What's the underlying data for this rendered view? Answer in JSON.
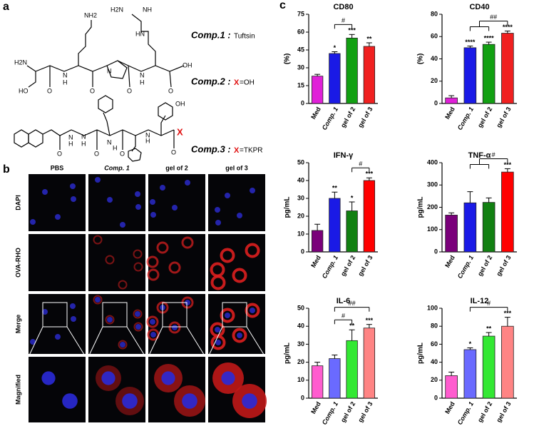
{
  "panel_a": {
    "label": "a",
    "atoms_1": [
      "NH2",
      "H2N",
      "NH",
      "HN",
      "H2N",
      "HO",
      "O",
      "H",
      "N",
      "O",
      "N",
      "O",
      "H",
      "N",
      "O",
      "OH"
    ],
    "atoms_2": [
      "O",
      "H",
      "N",
      "O",
      "N",
      "H",
      "O",
      "N",
      "H",
      "O",
      "OH",
      "H",
      "N"
    ],
    "compounds": [
      {
        "name": "Comp.1 :",
        "desc": "Tuftsin"
      },
      {
        "name": "Comp.2 :",
        "x": "X",
        "desc": "=OH"
      },
      {
        "name": "Comp.3 :",
        "x": "X",
        "desc": "=TKPR"
      }
    ],
    "x_mark": "X"
  },
  "panel_b": {
    "label": "b",
    "columns": [
      "PBS",
      "Comp. 1",
      "gel of 2",
      "gel of 3"
    ],
    "rows": [
      "DAPI",
      "OVA-RHO",
      "Merge",
      "Magnified"
    ]
  },
  "panel_c": {
    "label": "c"
  },
  "chart_data": [
    {
      "type": "bar",
      "title": "CD80",
      "ylabel": "(%)",
      "categories": [
        "Med",
        "Comp. 1",
        "gel of 2",
        "gel of 3"
      ],
      "values": [
        23,
        42,
        55,
        48
      ],
      "errors": [
        1.5,
        1.5,
        3,
        3
      ],
      "significance": [
        null,
        "*",
        "***",
        "**"
      ],
      "colors": [
        "#e020d8",
        "#1a1ae6",
        "#12a012",
        "#f02020"
      ],
      "ylim": [
        0,
        75
      ],
      "yticks": [
        0,
        15,
        30,
        45,
        60,
        75
      ],
      "brackets": [
        {
          "from": 1,
          "to": 2,
          "label": "#"
        }
      ]
    },
    {
      "type": "bar",
      "title": "CD40",
      "ylabel": "(%)",
      "categories": [
        "Med",
        "Comp. 1",
        "gel of 2",
        "gel of 3"
      ],
      "values": [
        5,
        50,
        53,
        63
      ],
      "errors": [
        2,
        1.5,
        2,
        2
      ],
      "significance": [
        null,
        "****",
        "****",
        "****"
      ],
      "colors": [
        "#e020d8",
        "#1a1ae6",
        "#12a012",
        "#f02020"
      ],
      "ylim": [
        0,
        80
      ],
      "yticks": [
        0,
        20,
        40,
        60,
        80
      ],
      "brackets": [
        {
          "from": [
            1,
            2
          ],
          "to": 3,
          "label": "##"
        }
      ]
    },
    {
      "type": "bar",
      "title": "IFN-γ",
      "ylabel": "pg/mL",
      "categories": [
        "Med",
        "Comp. 1",
        "gel of 2",
        "gel of 3"
      ],
      "values": [
        12,
        30,
        23,
        40
      ],
      "errors": [
        3.5,
        3.5,
        5,
        1.5
      ],
      "significance": [
        null,
        "**",
        "*",
        "***"
      ],
      "colors": [
        "#7a007a",
        "#1a1ae6",
        "#128012",
        "#ff0000"
      ],
      "ylim": [
        0,
        50
      ],
      "yticks": [
        0,
        10,
        20,
        30,
        40,
        50
      ],
      "brackets": [
        {
          "from": 2,
          "to": 3,
          "label": "#"
        }
      ]
    },
    {
      "type": "bar",
      "title": "TNF-α",
      "ylabel": "pg/mL",
      "categories": [
        "Med",
        "Comp. 1",
        "gel of 2",
        "gel of 3"
      ],
      "values": [
        165,
        220,
        222,
        358
      ],
      "errors": [
        10,
        50,
        20,
        15
      ],
      "significance": [
        null,
        null,
        null,
        "***"
      ],
      "colors": [
        "#7a007a",
        "#1a1ae6",
        "#128012",
        "#ff0000"
      ],
      "ylim": [
        0,
        400
      ],
      "yticks": [
        0,
        100,
        200,
        300,
        400
      ],
      "brackets": [
        {
          "from": [
            1,
            2
          ],
          "to": 3,
          "label": "#"
        }
      ]
    },
    {
      "type": "bar",
      "title": "IL-6",
      "ylabel": "pg/mL",
      "categories": [
        "Med",
        "Comp. 1",
        "gel of 2",
        "gel of 3"
      ],
      "values": [
        18,
        22,
        32,
        39
      ],
      "errors": [
        2,
        2,
        6,
        2
      ],
      "significance": [
        null,
        null,
        "**",
        "***"
      ],
      "colors": [
        "#ff5ccf",
        "#6a6aff",
        "#33e833",
        "#ff8484"
      ],
      "ylim": [
        0,
        50
      ],
      "yticks": [
        0,
        10,
        20,
        30,
        40,
        50
      ],
      "brackets": [
        {
          "from": 1,
          "to": 2,
          "label": "#"
        },
        {
          "from": 1,
          "to": 3,
          "label": "##"
        }
      ]
    },
    {
      "type": "bar",
      "title": "IL-12",
      "ylabel": "pg/mL",
      "categories": [
        "Med",
        "Comp. 1",
        "gel of 2",
        "gel of 3"
      ],
      "values": [
        25,
        54,
        69,
        80
      ],
      "errors": [
        4,
        2,
        4,
        10
      ],
      "significance": [
        null,
        "*",
        "**",
        "***"
      ],
      "colors": [
        "#ff5ccf",
        "#6a6aff",
        "#33e833",
        "#ff8484"
      ],
      "ylim": [
        0,
        100
      ],
      "yticks": [
        0,
        20,
        40,
        60,
        80,
        100
      ],
      "brackets": [
        {
          "from": 1,
          "to": 3,
          "label": "#"
        }
      ]
    }
  ]
}
